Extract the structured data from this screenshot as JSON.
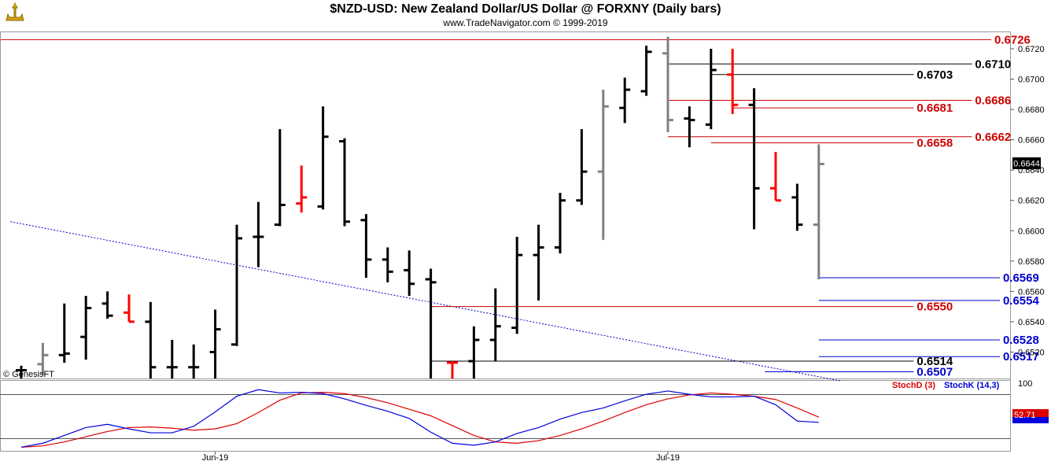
{
  "header": {
    "title": "$NZD-USD:  New Zealand Dollar/US Dollar @ FORXNY  (Daily bars)",
    "subtitle": "www.TradeNavigator.com © 1999-2019",
    "logo_icon": "tradenavigator-logo-icon"
  },
  "watermark": "© GenesisFT",
  "colors": {
    "bar_up": "#000000",
    "bar_down_gray": "#808080",
    "bar_red": "#ff0000",
    "level_red": "#cc0000",
    "level_black": "#000000",
    "level_blue": "#0000cc",
    "stoch_d": "#dd0000",
    "stoch_k": "#0000dd",
    "moving_average": "#0000cc"
  },
  "chart_data": [
    {
      "type": "ohlc",
      "name": "price",
      "last_price": "0.6644",
      "ylim": [
        0.65,
        0.6728
      ],
      "y_ticks": [
        "0.6720",
        "0.6700",
        "0.6680",
        "0.6660",
        "0.6640",
        "0.6620",
        "0.6600",
        "0.6580",
        "0.6560",
        "0.6540",
        "0.6520"
      ],
      "x_labels": [
        {
          "label": "Jun-19",
          "bar": 9
        },
        {
          "label": "Jul-19",
          "bar": 30
        }
      ],
      "bars": [
        {
          "o": 0.6508,
          "h": 0.6511,
          "l": 0.6502,
          "c": 0.6508,
          "color": "black"
        },
        {
          "o": 0.6512,
          "h": 0.6526,
          "l": 0.6505,
          "c": 0.6518,
          "color": "gray"
        },
        {
          "o": 0.6518,
          "h": 0.6552,
          "l": 0.6513,
          "c": 0.6519,
          "color": "black"
        },
        {
          "o": 0.653,
          "h": 0.6557,
          "l": 0.6515,
          "c": 0.6549,
          "color": "black"
        },
        {
          "o": 0.6552,
          "h": 0.656,
          "l": 0.6542,
          "c": 0.6544,
          "color": "black"
        },
        {
          "o": 0.6546,
          "h": 0.6558,
          "l": 0.654,
          "c": 0.654,
          "color": "red"
        },
        {
          "o": 0.654,
          "h": 0.6553,
          "l": 0.6502,
          "c": 0.651,
          "color": "black"
        },
        {
          "o": 0.651,
          "h": 0.6528,
          "l": 0.6502,
          "c": 0.651,
          "color": "black"
        },
        {
          "o": 0.651,
          "h": 0.6525,
          "l": 0.6502,
          "c": 0.651,
          "color": "black"
        },
        {
          "o": 0.652,
          "h": 0.6548,
          "l": 0.6502,
          "c": 0.6535,
          "color": "black"
        },
        {
          "o": 0.6525,
          "h": 0.6604,
          "l": 0.6524,
          "c": 0.6595,
          "color": "black"
        },
        {
          "o": 0.6596,
          "h": 0.6619,
          "l": 0.6576,
          "c": 0.6596,
          "color": "black"
        },
        {
          "o": 0.6604,
          "h": 0.6667,
          "l": 0.6603,
          "c": 0.6617,
          "color": "black"
        },
        {
          "o": 0.6618,
          "h": 0.6643,
          "l": 0.6612,
          "c": 0.6622,
          "color": "red"
        },
        {
          "o": 0.6616,
          "h": 0.6682,
          "l": 0.6614,
          "c": 0.6662,
          "color": "black"
        },
        {
          "o": 0.6659,
          "h": 0.6661,
          "l": 0.6603,
          "c": 0.6606,
          "color": "black"
        },
        {
          "o": 0.6607,
          "h": 0.6611,
          "l": 0.6569,
          "c": 0.6581,
          "color": "black"
        },
        {
          "o": 0.6581,
          "h": 0.6589,
          "l": 0.6566,
          "c": 0.6573,
          "color": "black"
        },
        {
          "o": 0.6574,
          "h": 0.6587,
          "l": 0.6557,
          "c": 0.6565,
          "color": "black"
        },
        {
          "o": 0.6568,
          "h": 0.6575,
          "l": 0.6502,
          "c": 0.6566,
          "color": "black"
        },
        {
          "o": 0.6513,
          "h": 0.6514,
          "l": 0.6502,
          "c": 0.6513,
          "color": "red"
        },
        {
          "o": 0.6514,
          "h": 0.6537,
          "l": 0.6502,
          "c": 0.6528,
          "color": "black"
        },
        {
          "o": 0.6528,
          "h": 0.6562,
          "l": 0.6514,
          "c": 0.6537,
          "color": "black"
        },
        {
          "o": 0.6536,
          "h": 0.6596,
          "l": 0.6532,
          "c": 0.6584,
          "color": "black"
        },
        {
          "o": 0.6584,
          "h": 0.6604,
          "l": 0.6554,
          "c": 0.6589,
          "color": "black"
        },
        {
          "o": 0.6589,
          "h": 0.6625,
          "l": 0.6585,
          "c": 0.662,
          "color": "black"
        },
        {
          "o": 0.662,
          "h": 0.6667,
          "l": 0.6617,
          "c": 0.6639,
          "color": "black"
        },
        {
          "o": 0.6639,
          "h": 0.6693,
          "l": 0.6594,
          "c": 0.6682,
          "color": "gray"
        },
        {
          "o": 0.6681,
          "h": 0.6701,
          "l": 0.6671,
          "c": 0.6693,
          "color": "black"
        },
        {
          "o": 0.6692,
          "h": 0.6722,
          "l": 0.6689,
          "c": 0.6718,
          "color": "black"
        },
        {
          "o": 0.6717,
          "h": 0.6728,
          "l": 0.6665,
          "c": 0.6673,
          "color": "gray"
        },
        {
          "o": 0.6674,
          "h": 0.6682,
          "l": 0.6655,
          "c": 0.6673,
          "color": "black"
        },
        {
          "o": 0.667,
          "h": 0.672,
          "l": 0.6667,
          "c": 0.6706,
          "color": "black"
        },
        {
          "o": 0.6703,
          "h": 0.672,
          "l": 0.6677,
          "c": 0.6683,
          "color": "red"
        },
        {
          "o": 0.6683,
          "h": 0.6694,
          "l": 0.6601,
          "c": 0.6628,
          "color": "black"
        },
        {
          "o": 0.6628,
          "h": 0.6652,
          "l": 0.662,
          "c": 0.662,
          "color": "red"
        },
        {
          "o": 0.6622,
          "h": 0.6631,
          "l": 0.66,
          "c": 0.6604,
          "color": "black"
        },
        {
          "o": 0.6604,
          "h": 0.6657,
          "l": 0.6568,
          "c": 0.6644,
          "color": "gray"
        }
      ],
      "moving_average": [
        {
          "bar": -0.5,
          "v": 0.6606
        },
        {
          "bar": 38,
          "v": 0.6501
        }
      ],
      "levels": [
        {
          "label": "0.6726",
          "value": 0.6726,
          "color": "red",
          "from_bar": -1,
          "to_bar": 45.0
        },
        {
          "label": "0.6710",
          "value": 0.671,
          "color": "black",
          "from_bar": 30,
          "to_bar": 44.1
        },
        {
          "label": "0.6703",
          "value": 0.6703,
          "color": "black",
          "from_bar": 32,
          "to_bar": 41.4
        },
        {
          "label": "0.6686",
          "value": 0.6686,
          "color": "red",
          "from_bar": 30,
          "to_bar": 44.1
        },
        {
          "label": "0.6681",
          "value": 0.6681,
          "color": "red",
          "from_bar": 33,
          "to_bar": 41.4
        },
        {
          "label": "0.6662",
          "value": 0.6662,
          "color": "red",
          "from_bar": 30,
          "to_bar": 44.1
        },
        {
          "label": "0.6658",
          "value": 0.6658,
          "color": "red",
          "from_bar": 32,
          "to_bar": 41.4
        },
        {
          "label": "0.6569",
          "value": 0.6569,
          "color": "blue",
          "from_bar": 37,
          "to_bar": 45.4
        },
        {
          "label": "0.6554",
          "value": 0.6554,
          "color": "blue",
          "from_bar": 37,
          "to_bar": 45.4
        },
        {
          "label": "0.6550",
          "value": 0.655,
          "color": "red",
          "from_bar": 19,
          "to_bar": 41.4
        },
        {
          "label": "0.6528",
          "value": 0.6528,
          "color": "blue",
          "from_bar": 37,
          "to_bar": 45.4
        },
        {
          "label": "0.6517",
          "value": 0.6517,
          "color": "blue",
          "from_bar": 37,
          "to_bar": 45.4
        },
        {
          "label": "0.6514",
          "value": 0.6514,
          "color": "black",
          "from_bar": 19,
          "to_bar": 41.4
        },
        {
          "label": "0.6507",
          "value": 0.6507,
          "color": "blue",
          "from_bar": 34.5,
          "to_bar": 41.4
        }
      ]
    },
    {
      "type": "line",
      "name": "stochastic",
      "ylim": [
        0,
        100
      ],
      "y_ticks": [
        "100"
      ],
      "legend": [
        "StochD (3)",
        "StochK (14,3)"
      ],
      "last_value": "52.71",
      "series": [
        {
          "name": "StochD (3)",
          "values": [
            2,
            4,
            10,
            18,
            26,
            32,
            33,
            31,
            28,
            30,
            38,
            55,
            74,
            85,
            86,
            84,
            78,
            70,
            60,
            50,
            35,
            20,
            10,
            8,
            12,
            20,
            30,
            42,
            55,
            67,
            76,
            82,
            85,
            83,
            80,
            75,
            62,
            48
          ]
        },
        {
          "name": "StochK (14,3)",
          "values": [
            2,
            8,
            20,
            32,
            37,
            30,
            24,
            24,
            34,
            56,
            80,
            90,
            85,
            86,
            84,
            76,
            66,
            57,
            46,
            25,
            8,
            5,
            10,
            23,
            32,
            45,
            55,
            62,
            73,
            83,
            88,
            83,
            79,
            79,
            80,
            67,
            42,
            40
          ]
        }
      ]
    }
  ]
}
